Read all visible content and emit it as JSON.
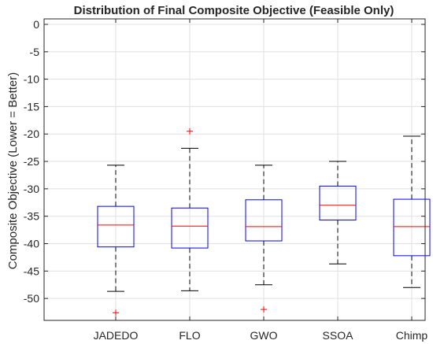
{
  "chart_data": {
    "type": "boxplot",
    "title": "Distribution of Final Composite Objective (Feasible Only)",
    "xlabel": "",
    "ylabel": "Composite Objective (Lower = Better)",
    "ylim": [
      -54,
      1
    ],
    "yticks": [
      0,
      -5,
      -10,
      -15,
      -20,
      -25,
      -30,
      -35,
      -40,
      -45,
      -50
    ],
    "grid": true,
    "categories": [
      "JADEDO",
      "FLO",
      "GWO",
      "SSOA",
      "Chimp"
    ],
    "boxes": [
      {
        "whisker_low": -48.7,
        "q1": -40.6,
        "median": -36.6,
        "q3": -33.2,
        "whisker_high": -25.7,
        "outliers": [
          -52.6
        ]
      },
      {
        "whisker_low": -48.6,
        "q1": -40.8,
        "median": -36.8,
        "q3": -33.5,
        "whisker_high": -22.6,
        "outliers": [
          -19.5
        ]
      },
      {
        "whisker_low": -47.5,
        "q1": -39.5,
        "median": -36.9,
        "q3": -32.0,
        "whisker_high": -25.7,
        "outliers": [
          -52.0
        ]
      },
      {
        "whisker_low": -43.7,
        "q1": -35.7,
        "median": -33.0,
        "q3": -29.5,
        "whisker_high": -25.0,
        "outliers": []
      },
      {
        "whisker_low": -48.0,
        "q1": -42.2,
        "median": -36.9,
        "q3": -31.9,
        "whisker_high": -20.4,
        "outliers": []
      }
    ],
    "colors": {
      "box": "#0000ff",
      "median": "#ff0000",
      "whisker": "#000000",
      "outlier": "#ff0000",
      "grid": "#e0e0e0",
      "axis": "#262626"
    }
  }
}
